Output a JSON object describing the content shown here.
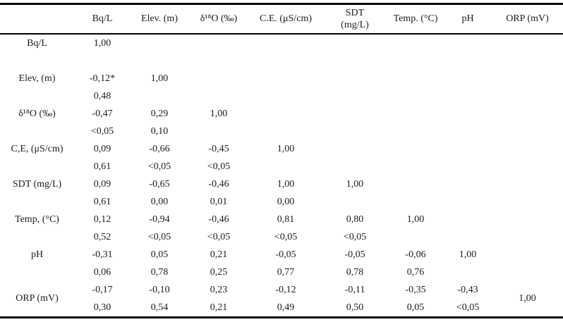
{
  "table": {
    "columns": [
      {
        "label": ""
      },
      {
        "label": "Bq/L"
      },
      {
        "label": "Elev. (m)"
      },
      {
        "label": "δ¹⁸O (‰)"
      },
      {
        "label": "C.E. (μS/cm)"
      },
      {
        "label": "SDT\n(mg/L)"
      },
      {
        "label": "Temp. (°C)"
      },
      {
        "label": "pH"
      },
      {
        "label": "ORP (mV)"
      }
    ],
    "rows": [
      {
        "label": "Bq/L",
        "coef": [
          "1,00",
          "",
          "",
          "",
          "",
          "",
          "",
          ""
        ],
        "p": [
          "",
          "",
          "",
          "",
          "",
          "",
          "",
          ""
        ]
      },
      {
        "label": "Elev, (m)",
        "coef": [
          "-0,12*",
          "1,00",
          "",
          "",
          "",
          "",
          "",
          ""
        ],
        "p": [
          "0,48",
          "",
          "",
          "",
          "",
          "",
          "",
          ""
        ]
      },
      {
        "label": "δ¹⁸O (‰)",
        "coef": [
          "-0,47",
          "0,29",
          "1,00",
          "",
          "",
          "",
          "",
          ""
        ],
        "p": [
          "<0,05",
          "0,10",
          "",
          "",
          "",
          "",
          "",
          ""
        ]
      },
      {
        "label": "C,E, (μS/cm)",
        "coef": [
          "0,09",
          "-0,66",
          "-0,45",
          "1,00",
          "",
          "",
          "",
          ""
        ],
        "p": [
          "0,61",
          "<0,05",
          "<0,05",
          "",
          "",
          "",
          "",
          ""
        ]
      },
      {
        "label": "SDT (mg/L)",
        "coef": [
          "0,09",
          "-0,65",
          "-0,46",
          "1,00",
          "1,00",
          "",
          "",
          ""
        ],
        "p": [
          "0,61",
          "0,00",
          "0,01",
          "0,00",
          "",
          "",
          "",
          ""
        ]
      },
      {
        "label": "Temp, (°C)",
        "coef": [
          "0,12",
          "-0,94",
          "-0,46",
          "0,81",
          "0,80",
          "1,00",
          "",
          ""
        ],
        "p": [
          "0,52",
          "<0,05",
          "<0,05",
          "<0,05",
          "<0,05",
          "",
          "",
          ""
        ]
      },
      {
        "label": "pH",
        "coef": [
          "-0,31",
          "0,05",
          "0,21",
          "-0,05",
          "-0,05",
          "-0,06",
          "1,00",
          ""
        ],
        "p": [
          "0,06",
          "0,78",
          "0,25",
          "0,77",
          "0,78",
          "0,76",
          "",
          ""
        ]
      },
      {
        "label": "ORP (mV)",
        "label_middle": true,
        "diag_rowspan_col": 7,
        "coef": [
          "-0,17",
          "-0,10",
          "0,23",
          "-0,12",
          "-0,11",
          "-0,35",
          "-0,43",
          "1,00"
        ],
        "p": [
          "0,30",
          "0,54",
          "0,21",
          "0,49",
          "0,50",
          "0,05",
          "<0,05",
          ""
        ]
      }
    ]
  }
}
